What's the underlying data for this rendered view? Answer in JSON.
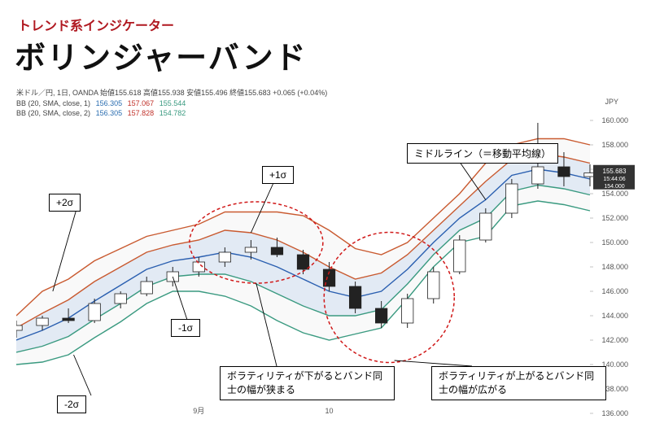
{
  "header": {
    "subtitle": "トレンド系インジケーター",
    "title": "ボリンジャーバンド"
  },
  "chart": {
    "type": "candlestick-with-bands",
    "symbol_line": "米ドル／円, 1日, OANDA 始値155.618 高値155.938 安値155.496 終値155.683 +0.065 (+0.04%)",
    "bb1_prefix": "BB (20, SMA, close, 1)",
    "bb1_vals": {
      "mid": "156.305",
      "upper": "157.067",
      "lower": "155.544"
    },
    "bb2_prefix": "BB (20, SMA, close, 2)",
    "bb2_vals": {
      "mid": "156.305",
      "upper": "157.828",
      "lower": "154.782"
    },
    "y_axis": {
      "label_right_top": "JPY",
      "min": 136,
      "max": 160,
      "step": 2,
      "price_mark": "155.683",
      "time_mark": "15:44:06",
      "extra_mark": "154.000",
      "tick_color": "#666",
      "grid_color": "#eeeeee"
    },
    "x_axis": {
      "labels": [
        "9月",
        "10"
      ]
    },
    "band_colors": {
      "plus2": "#c95a30",
      "plus1": "#c95a30",
      "middle": "#2a5fb0",
      "minus1": "#3a9a80",
      "minus2": "#3a9a80",
      "fill_inner": "#d8e4f2",
      "fill_outer": "#f8f8f8"
    },
    "line_width": 1.4,
    "candle_colors": {
      "up": "#ffffff",
      "down": "#222222",
      "wick": "#222222"
    },
    "highlight_circle": {
      "stroke": "#d01818",
      "dash": "4 3",
      "width": 1.5
    },
    "bands": {
      "plus2": [
        144,
        146,
        147,
        148.5,
        149.5,
        150.5,
        151,
        151.5,
        152.5,
        152.5,
        152.5,
        152.2,
        151,
        149.5,
        149,
        150,
        152,
        154,
        156.5,
        158,
        158.5,
        158.5,
        158
      ],
      "plus1": [
        143,
        144.2,
        145.3,
        146.8,
        148,
        149.2,
        149.8,
        150.2,
        151,
        150.8,
        150.2,
        149.2,
        148,
        147,
        147.5,
        149,
        151,
        153,
        155,
        156.8,
        157.3,
        157,
        156.5
      ],
      "middle": [
        142,
        142.8,
        143.8,
        145.2,
        146.5,
        147.8,
        148.5,
        148.8,
        149.2,
        148.8,
        148,
        147,
        146,
        145.5,
        146,
        147.8,
        150,
        152,
        153.5,
        155.5,
        156,
        155.7,
        155.2
      ],
      "minus1": [
        141,
        141.5,
        142.3,
        143.7,
        145,
        146.4,
        147.2,
        147.4,
        147.4,
        146.8,
        145.8,
        144.8,
        144,
        144,
        144.5,
        146.6,
        149,
        151,
        152,
        154.2,
        154.7,
        154.4,
        153.9
      ],
      "minus2": [
        140,
        140.2,
        140.8,
        142.2,
        143.5,
        145,
        146,
        146,
        145.6,
        144.8,
        143.6,
        142.6,
        142,
        142.5,
        143,
        145.4,
        148,
        150,
        150.5,
        153,
        153.4,
        153.1,
        152.6
      ]
    },
    "candles": [
      {
        "o": 142.8,
        "h": 143.6,
        "l": 142.2,
        "c": 143.2
      },
      {
        "o": 143.2,
        "h": 144.0,
        "l": 142.8,
        "c": 143.8
      },
      {
        "o": 143.8,
        "h": 144.6,
        "l": 143.4,
        "c": 143.6
      },
      {
        "o": 143.6,
        "h": 145.4,
        "l": 143.4,
        "c": 145.0
      },
      {
        "o": 145.0,
        "h": 146.0,
        "l": 144.6,
        "c": 145.8
      },
      {
        "o": 145.8,
        "h": 147.2,
        "l": 145.6,
        "c": 146.8
      },
      {
        "o": 146.8,
        "h": 148.0,
        "l": 146.4,
        "c": 147.6
      },
      {
        "o": 147.6,
        "h": 148.8,
        "l": 147.2,
        "c": 148.4
      },
      {
        "o": 148.4,
        "h": 149.6,
        "l": 148.0,
        "c": 149.2
      },
      {
        "o": 149.2,
        "h": 150.2,
        "l": 148.6,
        "c": 149.6
      },
      {
        "o": 149.6,
        "h": 150.4,
        "l": 148.8,
        "c": 149.0
      },
      {
        "o": 149.0,
        "h": 149.4,
        "l": 147.4,
        "c": 147.8
      },
      {
        "o": 147.8,
        "h": 148.4,
        "l": 146.0,
        "c": 146.4
      },
      {
        "o": 146.4,
        "h": 146.8,
        "l": 144.2,
        "c": 144.6
      },
      {
        "o": 144.6,
        "h": 145.2,
        "l": 143.0,
        "c": 143.4
      },
      {
        "o": 143.4,
        "h": 145.8,
        "l": 143.0,
        "c": 145.4
      },
      {
        "o": 145.4,
        "h": 148.0,
        "l": 145.0,
        "c": 147.6
      },
      {
        "o": 147.6,
        "h": 150.6,
        "l": 147.4,
        "c": 150.2
      },
      {
        "o": 150.2,
        "h": 152.8,
        "l": 150.0,
        "c": 152.4
      },
      {
        "o": 152.4,
        "h": 155.2,
        "l": 152.0,
        "c": 154.8
      },
      {
        "o": 154.8,
        "h": 159.8,
        "l": 154.4,
        "c": 156.2
      },
      {
        "o": 156.2,
        "h": 157.4,
        "l": 154.6,
        "c": 155.4
      },
      {
        "o": 155.4,
        "h": 156.4,
        "l": 154.6,
        "c": 155.7
      }
    ]
  },
  "annotations": {
    "plus2": "+2σ",
    "plus1": "+1σ",
    "minus1": "-1σ",
    "minus2": "-2σ",
    "middle": "ミドルライン（＝移動平均線）",
    "narrow": "ボラティリティが下がるとバンド同士の幅が狭まる",
    "wide": "ボラティリティが上がるとバンド同士の幅が広がる"
  }
}
